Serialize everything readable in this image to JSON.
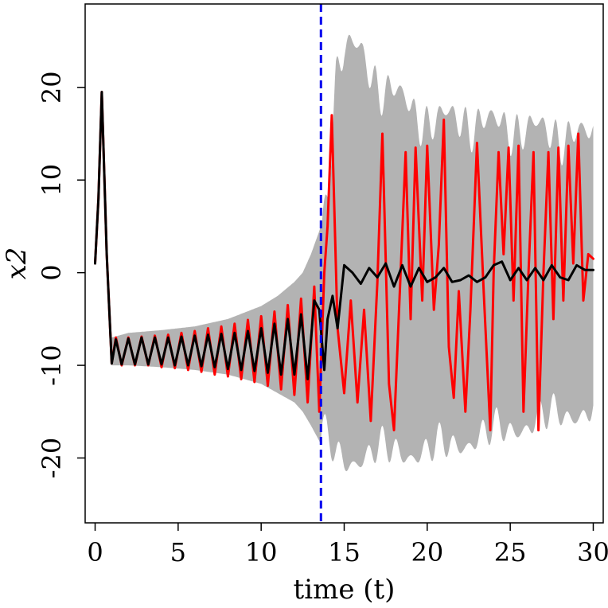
{
  "chart_data": {
    "type": "line",
    "title": "",
    "xlabel": "time (t)",
    "ylabel": "x2",
    "xlim": [
      -0.6,
      30.6
    ],
    "ylim": [
      -27,
      29
    ],
    "x_ticks": [
      "0",
      "5",
      "10",
      "15",
      "20",
      "25",
      "30"
    ],
    "y_ticks": [
      "-20",
      "-10",
      "0",
      "10",
      "20"
    ],
    "vline": {
      "x": 13.6,
      "color": "#0000ee",
      "style": "dashed"
    },
    "band": {
      "color": "#b3b3b3",
      "x": [
        0,
        0.2,
        0.4,
        0.7,
        1.0,
        2,
        4,
        6,
        8,
        10,
        11,
        12,
        12.5,
        13,
        13.6,
        14,
        14.5,
        15,
        16,
        17,
        18,
        19,
        20,
        22,
        24,
        26,
        28,
        30
      ],
      "upper": [
        1,
        8,
        19.5,
        4,
        -7,
        -6.5,
        -6.2,
        -5.8,
        -5,
        -3.6,
        -2.5,
        -1,
        0,
        2,
        5,
        11,
        23,
        26,
        25,
        22,
        21,
        19,
        18,
        18,
        17.5,
        17,
        16.5,
        16
      ],
      "lower": [
        1,
        8,
        19.5,
        4,
        -10,
        -10,
        -10.2,
        -10.5,
        -11,
        -12,
        -13,
        -14,
        -15,
        -16.5,
        -18.5,
        -19.5,
        -21,
        -21.5,
        -21,
        -20.5,
        -20.5,
        -20.5,
        -20.5,
        -19.5,
        -18.5,
        -17.5,
        -16.5,
        -16
      ]
    },
    "series": [
      {
        "color": "#ff0000",
        "x": [
          0,
          0.2,
          0.4,
          0.7,
          1.0,
          1.25,
          1.6,
          2.0,
          2.4,
          2.8,
          3.2,
          3.6,
          4.0,
          4.4,
          4.8,
          5.2,
          5.6,
          6.0,
          6.4,
          6.8,
          7.2,
          7.6,
          8.0,
          8.4,
          8.8,
          9.2,
          9.6,
          10.0,
          10.4,
          10.8,
          11.2,
          11.6,
          12.0,
          12.4,
          12.8,
          13.2,
          13.5,
          13.8,
          14.0,
          14.25,
          14.6,
          15.0,
          15.4,
          15.8,
          16.2,
          16.6,
          17.0,
          17.3,
          17.7,
          18.0,
          18.4,
          18.7,
          19.0,
          19.3,
          19.7,
          20.0,
          20.4,
          20.7,
          21.0,
          21.3,
          21.6,
          21.9,
          22.3,
          22.6,
          23.0,
          23.4,
          23.8,
          24.0,
          24.3,
          24.6,
          24.9,
          25.2,
          25.5,
          25.8,
          26.1,
          26.4,
          26.7,
          27.0,
          27.3,
          27.6,
          27.9,
          28.2,
          28.5,
          28.8,
          29.1,
          29.4,
          29.7,
          30.0
        ],
        "y": [
          1,
          8,
          19.5,
          2,
          -9.8,
          -7,
          -10,
          -7,
          -10,
          -6.9,
          -10,
          -6.8,
          -10.2,
          -6.7,
          -10.3,
          -6.5,
          -10.5,
          -6.3,
          -10.7,
          -6,
          -11,
          -5.8,
          -11.2,
          -5.5,
          -11.5,
          -5.1,
          -11.8,
          -4.7,
          -12.2,
          -4.2,
          -12.6,
          -3.5,
          -13.2,
          -2.8,
          -14,
          -1.5,
          -15,
          0,
          5,
          17,
          -6,
          -13,
          -3,
          -14,
          -4,
          -16,
          -1,
          15,
          -12,
          -17,
          0,
          13,
          -5,
          13.5,
          -3,
          13.7,
          -4,
          3,
          16.5,
          -8,
          -13.5,
          -2,
          -15,
          -4,
          14,
          -2,
          -17,
          0,
          13,
          2,
          13.5,
          -3,
          13.7,
          -15,
          0,
          13,
          -17,
          0,
          13,
          -5,
          13.5,
          -3,
          13.7,
          1,
          15,
          -3,
          2,
          1.5
        ]
      },
      {
        "color": "#000000",
        "x": [
          0,
          0.2,
          0.4,
          0.7,
          1.0,
          1.25,
          1.6,
          2.0,
          2.4,
          2.8,
          3.2,
          3.6,
          4.0,
          4.4,
          4.8,
          5.2,
          5.6,
          6.0,
          6.4,
          6.8,
          7.2,
          7.6,
          8.0,
          8.4,
          8.8,
          9.2,
          9.6,
          10.0,
          10.4,
          10.8,
          11.2,
          11.6,
          12.0,
          12.4,
          12.8,
          13.2,
          13.5,
          13.8,
          14.0,
          14.3,
          14.6,
          15.0,
          15.5,
          16.0,
          16.5,
          17.0,
          17.5,
          18.0,
          18.5,
          19.0,
          19.5,
          20.0,
          20.5,
          21.0,
          21.5,
          22.0,
          22.5,
          23.0,
          23.5,
          24.0,
          24.5,
          25.0,
          25.5,
          26.0,
          26.5,
          27.0,
          27.5,
          28.0,
          28.5,
          29.0,
          29.5,
          30.0
        ],
        "y": [
          1,
          8,
          19.5,
          2,
          -9.8,
          -7.2,
          -9.9,
          -7.1,
          -9.9,
          -7,
          -9.9,
          -7,
          -9.9,
          -7,
          -10,
          -6.9,
          -10,
          -6.8,
          -10.1,
          -6.7,
          -10.2,
          -6.6,
          -10.4,
          -6.5,
          -10.5,
          -6.3,
          -10.6,
          -6,
          -10.8,
          -5.5,
          -11,
          -5,
          -11,
          -4.5,
          -11.5,
          -3,
          -4,
          -10.5,
          -5,
          -2.5,
          -6,
          0.8,
          0,
          -1.2,
          0.5,
          -0.5,
          1,
          -1.5,
          0.8,
          -1.5,
          0.5,
          -1,
          -0.5,
          0.5,
          -1,
          -0.8,
          -0.3,
          -1,
          -0.5,
          0.8,
          1.2,
          -0.8,
          0.5,
          -0.8,
          0.5,
          -0.8,
          0.8,
          -0.5,
          -0.8,
          0.8,
          0.3,
          0.3
        ]
      }
    ]
  }
}
